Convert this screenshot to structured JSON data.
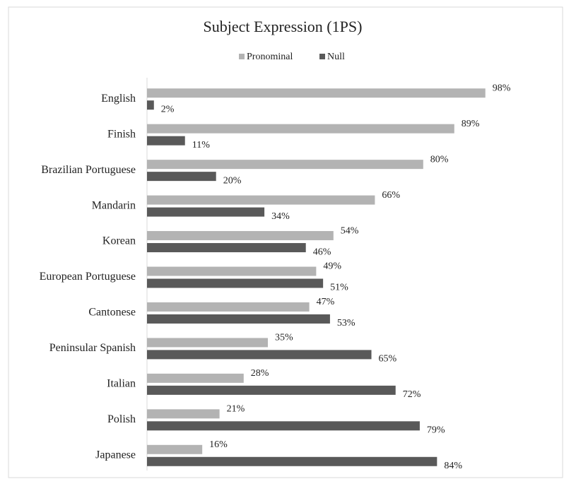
{
  "chart_data": {
    "type": "bar",
    "orientation": "horizontal",
    "title": "Subject Expression (1PS)",
    "categories": [
      "English",
      "Finish",
      "Brazilian Portuguese",
      "Mandarin",
      "Korean",
      "European Portuguese",
      "Cantonese",
      "Peninsular Spanish",
      "Italian",
      "Polish",
      "Japanese"
    ],
    "series": [
      {
        "name": "Pronominal",
        "color": "#b3b3b3",
        "values": [
          98,
          89,
          80,
          66,
          54,
          49,
          47,
          35,
          28,
          21,
          16
        ],
        "value_labels": [
          "98%",
          "89%",
          "80%",
          "66%",
          "54%",
          "49%",
          "47%",
          "35%",
          "28%",
          "21%",
          "16%"
        ]
      },
      {
        "name": "Null",
        "color": "#595959",
        "values": [
          2,
          11,
          20,
          34,
          46,
          51,
          53,
          65,
          72,
          79,
          84
        ],
        "value_labels": [
          "2%",
          "11%",
          "20%",
          "34%",
          "46%",
          "51%",
          "53%",
          "65%",
          "72%",
          "79%",
          "84%"
        ]
      }
    ],
    "xlim": [
      0,
      100
    ],
    "legend": "top"
  }
}
